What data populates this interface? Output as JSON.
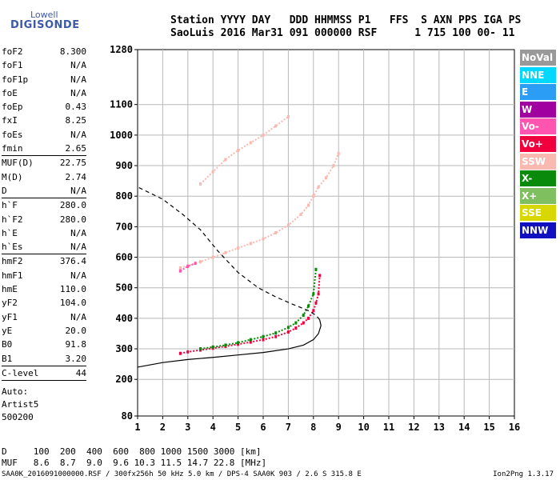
{
  "logo": {
    "line1": "Lowell",
    "line2": "DIGISONDE"
  },
  "header": {
    "row1": "Station YYYY DAY   DDD HHMMSS P1   FFS  S AXN PPS IGA PS",
    "row2": "SaoLuis 2016 Mar31 091 000000 RSF      1 715 100 00- 11"
  },
  "params": [
    {
      "name": "foF2",
      "value": "8.300"
    },
    {
      "name": "foF1",
      "value": "N/A"
    },
    {
      "name": "foF1p",
      "value": "N/A"
    },
    {
      "name": "foE",
      "value": "N/A"
    },
    {
      "name": "foEp",
      "value": "0.43"
    },
    {
      "name": "fxI",
      "value": "8.25"
    },
    {
      "name": "foEs",
      "value": "N/A"
    },
    {
      "name": "fmin",
      "value": "2.65",
      "sep_after": true
    },
    {
      "name": "MUF(D)",
      "value": "22.75"
    },
    {
      "name": "M(D)",
      "value": "2.74"
    },
    {
      "name": "D",
      "value": "N/A",
      "sep_after": true
    },
    {
      "name": "h`F",
      "value": "280.0"
    },
    {
      "name": "h`F2",
      "value": "280.0"
    },
    {
      "name": "h`E",
      "value": "N/A"
    },
    {
      "name": "h`Es",
      "value": "N/A",
      "sep_after": true
    },
    {
      "name": "hmF2",
      "value": "376.4"
    },
    {
      "name": "hmF1",
      "value": "N/A"
    },
    {
      "name": "hmE",
      "value": "110.0"
    },
    {
      "name": "yF2",
      "value": "104.0"
    },
    {
      "name": "yF1",
      "value": "N/A"
    },
    {
      "name": "yE",
      "value": "20.0"
    },
    {
      "name": "B0",
      "value": "91.8"
    },
    {
      "name": "B1",
      "value": "3.20",
      "sep_after": true
    },
    {
      "name": "C-level",
      "value": "44",
      "sep_after": true
    }
  ],
  "auto": {
    "line1": "Auto:",
    "line2": "Artist5",
    "line3": "500200"
  },
  "legend": [
    {
      "label": "NoVal",
      "color": "#999999"
    },
    {
      "label": "NNE",
      "color": "#00d8ff"
    },
    {
      "label": "E",
      "color": "#2b9df4"
    },
    {
      "label": "W",
      "color": "#a000a0"
    },
    {
      "label": "Vo-",
      "color": "#ff55b0"
    },
    {
      "label": "Vo+",
      "color": "#f0003c"
    },
    {
      "label": "SSW",
      "color": "#f9b9b0"
    },
    {
      "label": "X-",
      "color": "#0a8a0a"
    },
    {
      "label": "X+",
      "color": "#7fbf5f"
    },
    {
      "label": "SSE",
      "color": "#d8d800"
    },
    {
      "label": "NNW",
      "color": "#1010c0"
    }
  ],
  "dmuf": {
    "row1": "D     100  200  400  600  800 1000 1500 3000 [km]",
    "row2": "MUF   8.6  8.7  9.0  9.6 10.3 11.5 14.7 22.8 [MHz]"
  },
  "footer": {
    "text": "SAA0K_2016091000000.RSF / 300fx256h 50 kHz 5.0 km / DPS-4 SAA0K 903 / 2.6 S 315.8 E",
    "version": "Ion2Png 1.3.17"
  },
  "chart_data": {
    "type": "scatter",
    "xlim": [
      1,
      16
    ],
    "ylim": [
      80,
      1280
    ],
    "x_ticks": [
      1,
      2,
      3,
      4,
      5,
      6,
      7,
      8,
      9,
      10,
      11,
      12,
      13,
      14,
      15,
      16
    ],
    "y_ticks": [
      80,
      200,
      300,
      400,
      500,
      600,
      700,
      800,
      900,
      1000,
      1100,
      1280
    ],
    "grid": true,
    "series": [
      {
        "name": "Vo+",
        "color": "#f0003c",
        "x": [
          2.7,
          3.0,
          3.5,
          4.0,
          4.5,
          5.0,
          5.5,
          6.0,
          6.5,
          7.0,
          7.3,
          7.6,
          7.8,
          8.0,
          8.1,
          8.2,
          8.25
        ],
        "y": [
          285,
          290,
          296,
          302,
          308,
          315,
          322,
          330,
          340,
          355,
          368,
          385,
          400,
          425,
          450,
          480,
          540
        ]
      },
      {
        "name": "X-",
        "color": "#0a8a0a",
        "x": [
          3.5,
          4.0,
          4.5,
          5.0,
          5.5,
          6.0,
          6.5,
          7.0,
          7.3,
          7.6,
          7.8,
          8.0,
          8.1
        ],
        "y": [
          300,
          306,
          312,
          320,
          330,
          340,
          352,
          370,
          385,
          410,
          440,
          480,
          560
        ]
      },
      {
        "name": "SSW",
        "color": "#f9b9b0",
        "x": [
          2.7,
          3.0,
          3.5,
          4.0,
          4.5,
          5.0,
          5.5,
          6.0,
          6.5,
          7.0,
          7.5,
          7.8,
          8.0,
          8.2,
          8.5,
          8.8,
          9.0
        ],
        "y": [
          565,
          572,
          585,
          600,
          615,
          630,
          645,
          660,
          680,
          705,
          740,
          770,
          800,
          830,
          860,
          900,
          940
        ]
      },
      {
        "name": "SSW upper",
        "color": "#f9b9b0",
        "x": [
          3.5,
          4.0,
          4.5,
          5.0,
          5.5,
          6.0,
          6.5,
          7.0
        ],
        "y": [
          840,
          880,
          920,
          950,
          975,
          1000,
          1030,
          1060
        ]
      },
      {
        "name": "Vo-",
        "color": "#ff55b0",
        "x": [
          2.7,
          3.0,
          3.3
        ],
        "y": [
          555,
          570,
          580
        ]
      }
    ],
    "profile": {
      "x": [
        1.0,
        2.0,
        3.0,
        4.0,
        5.0,
        6.0,
        7.0,
        7.6,
        8.0,
        8.2,
        8.3,
        8.25,
        8.1,
        7.8,
        7.2,
        6.5,
        5.8,
        5.0,
        4.2,
        3.5,
        2.8,
        2.0,
        1.5,
        1.0
      ],
      "y": [
        240,
        255,
        265,
        272,
        280,
        288,
        300,
        312,
        330,
        350,
        376,
        395,
        410,
        425,
        445,
        470,
        500,
        550,
        620,
        690,
        740,
        790,
        810,
        830
      ]
    }
  }
}
